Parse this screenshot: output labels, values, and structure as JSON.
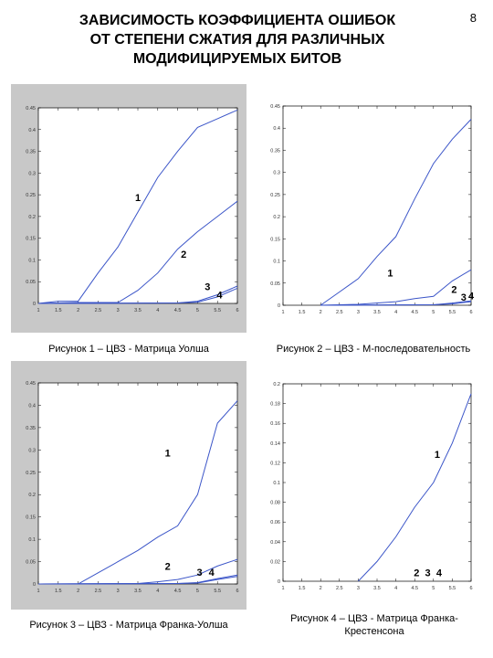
{
  "page_number": "8",
  "title": {
    "line1": "ЗАВИСИМОСТЬ КОЭФФИЦИЕНТА ОШИБОК",
    "line2": "ОТ СТЕПЕНИ СЖАТИЯ ДЛЯ РАЗЛИЧНЫХ",
    "line3": "МОДИФИЦИРУЕМЫХ БИТОВ"
  },
  "colors": {
    "line": "#3b55c8",
    "frame_bg": "#c8c8c8",
    "plot_bg": "#ffffff"
  },
  "chart_data": [
    {
      "type": "line",
      "caption": "Рисунок 1 – ЦВЗ - Матрица Уолша",
      "xlim": [
        1,
        6
      ],
      "ylim": [
        0,
        0.45
      ],
      "xticks": [
        1,
        1.5,
        2,
        2.5,
        3,
        3.5,
        4,
        4.5,
        5,
        5.5,
        6
      ],
      "xtick_labels": [
        "1",
        "1.5",
        "2",
        "2.5",
        "3",
        "3.5",
        "4",
        "4.5",
        "5",
        "5.5",
        "6"
      ],
      "yticks": [
        0,
        0.05,
        0.1,
        0.15,
        0.2,
        0.25,
        0.3,
        0.35,
        0.4,
        0.45
      ],
      "ytick_labels": [
        "0",
        "0.05",
        "0.1",
        "0.15",
        "0.2",
        "0.25",
        "0.3",
        "0.35",
        "0.4",
        "0.45"
      ],
      "framed": true,
      "series": [
        {
          "x": [
            1,
            1.5,
            2,
            2.5,
            3,
            3.5,
            4,
            4.5,
            5,
            5.5,
            6
          ],
          "y": [
            0,
            0.005,
            0.005,
            0.07,
            0.13,
            0.21,
            0.29,
            0.35,
            0.405,
            0.425,
            0.445
          ]
        },
        {
          "x": [
            1,
            2,
            3,
            3.5,
            4,
            4.5,
            5,
            5.5,
            6
          ],
          "y": [
            0,
            0.002,
            0.002,
            0.03,
            0.07,
            0.125,
            0.165,
            0.2,
            0.235
          ]
        },
        {
          "x": [
            1,
            4.5,
            5,
            5.5,
            6
          ],
          "y": [
            0,
            0.001,
            0.005,
            0.02,
            0.04
          ]
        },
        {
          "x": [
            1,
            4.5,
            5,
            5.5,
            6
          ],
          "y": [
            0,
            0.001,
            0.003,
            0.015,
            0.035
          ]
        }
      ],
      "labels": [
        {
          "text": "1",
          "x": 3.5,
          "y": 0.235
        },
        {
          "text": "2",
          "x": 4.65,
          "y": 0.105
        },
        {
          "text": "3",
          "x": 5.25,
          "y": 0.03
        },
        {
          "text": "4",
          "x": 5.55,
          "y": 0.012
        }
      ]
    },
    {
      "type": "line",
      "caption": "Рисунок 2 – ЦВЗ - М-последовательность",
      "xlim": [
        1,
        6
      ],
      "ylim": [
        0,
        0.45
      ],
      "xticks": [
        1,
        1.5,
        2,
        2.5,
        3,
        3.5,
        4,
        4.5,
        5,
        5.5,
        6
      ],
      "xtick_labels": [
        "1",
        "1.5",
        "2",
        "2.5",
        "3",
        "3.5",
        "4",
        "4.5",
        "5",
        "5.5",
        "6"
      ],
      "yticks": [
        0,
        0.05,
        0.1,
        0.15,
        0.2,
        0.25,
        0.3,
        0.35,
        0.4,
        0.45
      ],
      "ytick_labels": [
        "0",
        "0.05",
        "0.1",
        "0.15",
        "0.2",
        "0.25",
        "0.3",
        "0.35",
        "0.4",
        "0.45"
      ],
      "framed": false,
      "series": [
        {
          "x": [
            2,
            2.5,
            3,
            3.5,
            4,
            4.5,
            5,
            5.5,
            6
          ],
          "y": [
            0,
            0.03,
            0.06,
            0.11,
            0.155,
            0.24,
            0.32,
            0.375,
            0.42
          ]
        },
        {
          "x": [
            2,
            3,
            4,
            4.5,
            5,
            5.5,
            6
          ],
          "y": [
            0,
            0.002,
            0.008,
            0.015,
            0.02,
            0.055,
            0.08
          ]
        },
        {
          "x": [
            2,
            5,
            5.5,
            6
          ],
          "y": [
            0,
            0.001,
            0.005,
            0.01
          ]
        },
        {
          "x": [
            2,
            5,
            5.5,
            6
          ],
          "y": [
            0,
            0.001,
            0.003,
            0.008
          ]
        }
      ],
      "labels": [
        {
          "text": "1",
          "x": 3.85,
          "y": 0.065
        },
        {
          "text": "2",
          "x": 5.55,
          "y": 0.028
        },
        {
          "text": "3",
          "x": 5.8,
          "y": 0.01
        },
        {
          "text": "4",
          "x": 6.0,
          "y": 0.013
        }
      ]
    },
    {
      "type": "line",
      "caption": "Рисунок 3 – ЦВЗ - Матрица Франка-Уолша",
      "xlim": [
        1,
        6
      ],
      "ylim": [
        0,
        0.45
      ],
      "xticks": [
        1,
        1.5,
        2,
        2.5,
        3,
        3.5,
        4,
        4.5,
        5,
        5.5,
        6
      ],
      "xtick_labels": [
        "1",
        "1.5",
        "2",
        "2.5",
        "3",
        "3.5",
        "4",
        "4.5",
        "5",
        "5.5",
        "6"
      ],
      "yticks": [
        0,
        0.05,
        0.1,
        0.15,
        0.2,
        0.25,
        0.3,
        0.35,
        0.4,
        0.45
      ],
      "ytick_labels": [
        "0",
        "0.05",
        "0.1",
        "0.15",
        "0.2",
        "0.25",
        "0.3",
        "0.35",
        "0.4",
        "0.45"
      ],
      "framed": true,
      "series": [
        {
          "x": [
            1,
            2,
            2.5,
            3,
            3.5,
            4,
            4.5,
            5,
            5.5,
            6
          ],
          "y": [
            0,
            0,
            0.025,
            0.05,
            0.075,
            0.105,
            0.13,
            0.2,
            0.36,
            0.41
          ]
        },
        {
          "x": [
            1,
            3.5,
            4,
            4.5,
            5,
            5.5,
            6
          ],
          "y": [
            0,
            0.001,
            0.005,
            0.01,
            0.02,
            0.04,
            0.055
          ]
        },
        {
          "x": [
            1,
            4.5,
            5,
            5.5,
            6
          ],
          "y": [
            0,
            0.001,
            0.003,
            0.012,
            0.02
          ]
        },
        {
          "x": [
            1,
            4.5,
            5,
            5.5,
            6
          ],
          "y": [
            0,
            0.001,
            0.002,
            0.01,
            0.017
          ]
        }
      ],
      "labels": [
        {
          "text": "1",
          "x": 4.25,
          "y": 0.285
        },
        {
          "text": "2",
          "x": 4.25,
          "y": 0.032
        },
        {
          "text": "3",
          "x": 5.05,
          "y": 0.018
        },
        {
          "text": "4",
          "x": 5.35,
          "y": 0.018
        }
      ]
    },
    {
      "type": "line",
      "caption": "Рисунок 4 – ЦВЗ - Матрица Франка-Крестенсона",
      "caption_lines": [
        "Рисунок 4 – ЦВЗ - Матрица Франка-",
        "Крестенсона"
      ],
      "xlim": [
        1,
        6
      ],
      "ylim": [
        0,
        0.2
      ],
      "xticks": [
        1,
        1.5,
        2,
        2.5,
        3,
        3.5,
        4,
        4.5,
        5,
        5.5,
        6
      ],
      "xtick_labels": [
        "1",
        "1.5",
        "2",
        "2.5",
        "3",
        "3.5",
        "4",
        "4.5",
        "5",
        "5.5",
        "6"
      ],
      "yticks": [
        0,
        0.02,
        0.04,
        0.06,
        0.08,
        0.1,
        0.12,
        0.14,
        0.16,
        0.18,
        0.2
      ],
      "ytick_labels": [
        "0",
        "0.02",
        "0.04",
        "0.06",
        "0.08",
        "0.1",
        "0.12",
        "0.14",
        "0.16",
        "0.18",
        "0.2"
      ],
      "framed": false,
      "series": [
        {
          "x": [
            3,
            3.5,
            4,
            4.5,
            5,
            5.5,
            6
          ],
          "y": [
            0,
            0.02,
            0.045,
            0.075,
            0.1,
            0.14,
            0.19
          ]
        }
      ],
      "labels": [
        {
          "text": "1",
          "x": 5.1,
          "y": 0.125
        },
        {
          "text": "2",
          "x": 4.55,
          "y": 0.005
        },
        {
          "text": "3",
          "x": 4.85,
          "y": 0.005
        },
        {
          "text": "4",
          "x": 5.15,
          "y": 0.005
        }
      ]
    }
  ]
}
